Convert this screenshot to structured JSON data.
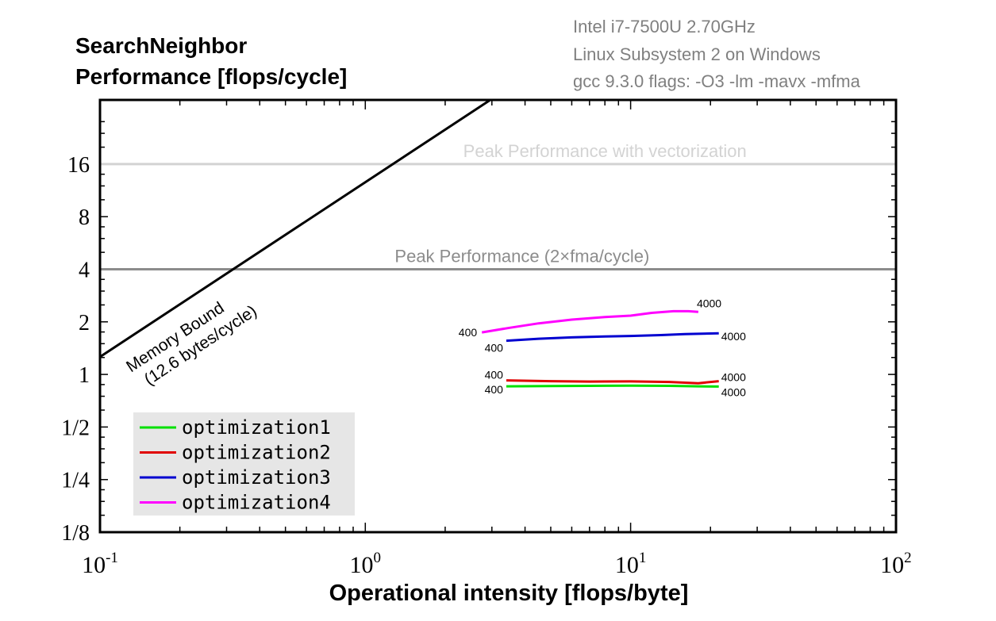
{
  "chart_data": {
    "type": "line",
    "title_lines": [
      "SearchNeighbor",
      "Performance [flops/cycle]"
    ],
    "info_lines": [
      "Intel i7-7500U 2.70GHz",
      "Linux Subsystem 2 on Windows",
      "gcc 9.3.0 flags: -O3 -lm -mavx -mfma"
    ],
    "xlabel": "Operational intensity [flops/byte]",
    "xscale": "log10",
    "yscale": "log2",
    "xlim": [
      0.1,
      100
    ],
    "ylim": [
      0.125,
      48
    ],
    "x_ticks": [
      {
        "value": 0.1,
        "base": "10",
        "exp": "-1"
      },
      {
        "value": 1,
        "base": "10",
        "exp": "0"
      },
      {
        "value": 10,
        "base": "10",
        "exp": "1"
      },
      {
        "value": 100,
        "base": "10",
        "exp": "2"
      }
    ],
    "y_ticks": [
      {
        "value": 0.125,
        "label": "1/8"
      },
      {
        "value": 0.25,
        "label": "1/4"
      },
      {
        "value": 0.5,
        "label": "1/2"
      },
      {
        "value": 1,
        "label": "1"
      },
      {
        "value": 2,
        "label": "2"
      },
      {
        "value": 4,
        "label": "4"
      },
      {
        "value": 8,
        "label": "8"
      },
      {
        "value": 16,
        "label": "16"
      }
    ],
    "reference_lines": [
      {
        "name": "peak-vectorization",
        "y": 16,
        "label": "Peak Performance with vectorization",
        "color": "#d3d3d3",
        "label_x": 8
      },
      {
        "name": "peak-scalar",
        "y": 4,
        "label": "Peak Performance (2×fma/cycle)",
        "color": "#8c8c8c",
        "label_x": 3.9
      }
    ],
    "memory_bound": {
      "bandwidth": 12.6,
      "label_lines": [
        "Memory Bound",
        "(12.6 bytes/cycle)"
      ],
      "color": "#000000"
    },
    "series": [
      {
        "name": "optimization1",
        "color": "#00e000",
        "x": [
          3.4,
          5,
          7,
          10,
          14,
          18,
          21.5
        ],
        "y": [
          0.855,
          0.858,
          0.86,
          0.862,
          0.86,
          0.855,
          0.852
        ],
        "start_label": "400",
        "end_label": "4000"
      },
      {
        "name": "optimization2",
        "color": "#e00000",
        "x": [
          3.4,
          5,
          7,
          10,
          14,
          18,
          21.5
        ],
        "y": [
          0.925,
          0.915,
          0.91,
          0.912,
          0.905,
          0.89,
          0.915
        ],
        "start_label": "400",
        "end_label": "4000"
      },
      {
        "name": "optimization3",
        "color": "#0000d0",
        "x": [
          3.4,
          4.5,
          6,
          8,
          10,
          13,
          16,
          21.5
        ],
        "y": [
          1.56,
          1.6,
          1.63,
          1.65,
          1.66,
          1.68,
          1.7,
          1.72
        ],
        "start_label": "400",
        "end_label": "4000"
      },
      {
        "name": "optimization4",
        "color": "#ff00ff",
        "x": [
          2.75,
          3.5,
          4.5,
          6,
          8,
          10,
          12,
          14.5,
          16.5,
          18
        ],
        "y": [
          1.74,
          1.85,
          1.96,
          2.06,
          2.13,
          2.17,
          2.25,
          2.3,
          2.3,
          2.28
        ],
        "start_label": "400",
        "end_label": "4000"
      }
    ]
  }
}
